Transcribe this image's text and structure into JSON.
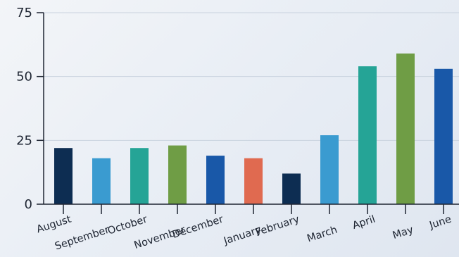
{
  "chart_data": {
    "type": "bar",
    "title": "",
    "xlabel": "",
    "ylabel": "",
    "ylim": [
      0,
      75
    ],
    "yticks": [
      0,
      25,
      50,
      75
    ],
    "grid": "horizontal",
    "legend": "none",
    "categories": [
      "August",
      "September",
      "October",
      "November",
      "December",
      "January",
      "February",
      "March",
      "April",
      "May",
      "June"
    ],
    "values": [
      22,
      18,
      22,
      23,
      19,
      18,
      12,
      27,
      54,
      59,
      53
    ],
    "colors": [
      "#0d2d52",
      "#3a9bd0",
      "#25a496",
      "#6f9d45",
      "#1958a8",
      "#e06a50",
      "#0d2d52",
      "#3a9bd0",
      "#25a496",
      "#6f9d45",
      "#1958a8"
    ]
  }
}
